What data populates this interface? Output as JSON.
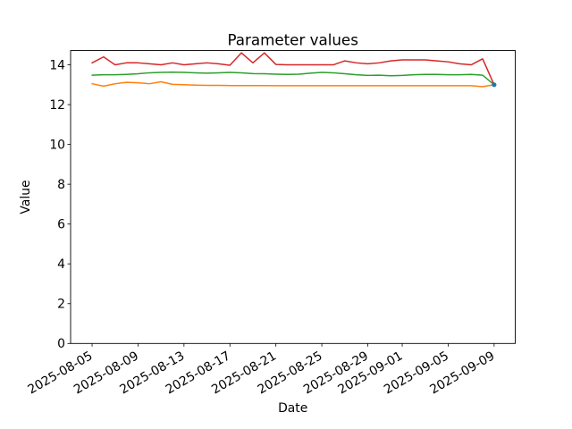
{
  "chart_data": {
    "type": "line",
    "title": "Parameter values",
    "xlabel": "Date",
    "ylabel": "Value",
    "grid": false,
    "legend": null,
    "ylim": [
      0,
      14.72
    ],
    "xlim_day_index": [
      -1.87,
      36.84
    ],
    "yticks": [
      0,
      2,
      4,
      6,
      8,
      10,
      12,
      14
    ],
    "xticks": [
      {
        "day_index": 0,
        "label": "2025-08-05"
      },
      {
        "day_index": 4,
        "label": "2025-08-09"
      },
      {
        "day_index": 8,
        "label": "2025-08-13"
      },
      {
        "day_index": 12,
        "label": "2025-08-17"
      },
      {
        "day_index": 16,
        "label": "2025-08-21"
      },
      {
        "day_index": 20,
        "label": "2025-08-25"
      },
      {
        "day_index": 24,
        "label": "2025-08-29"
      },
      {
        "day_index": 27,
        "label": "2025-09-01"
      },
      {
        "day_index": 31,
        "label": "2025-09-05"
      },
      {
        "day_index": 35,
        "label": "2025-09-09"
      }
    ],
    "x_tick_rotation_deg": 30,
    "x_dates": [
      "2025-08-05",
      "2025-08-06",
      "2025-08-07",
      "2025-08-08",
      "2025-08-09",
      "2025-08-10",
      "2025-08-11",
      "2025-08-12",
      "2025-08-13",
      "2025-08-14",
      "2025-08-15",
      "2025-08-16",
      "2025-08-17",
      "2025-08-18",
      "2025-08-19",
      "2025-08-20",
      "2025-08-21",
      "2025-08-22",
      "2025-08-23",
      "2025-08-24",
      "2025-08-25",
      "2025-08-26",
      "2025-08-27",
      "2025-08-28",
      "2025-08-29",
      "2025-08-30",
      "2025-08-31",
      "2025-09-01",
      "2025-09-02",
      "2025-09-03",
      "2025-09-04",
      "2025-09-05",
      "2025-09-06",
      "2025-09-07",
      "2025-09-08",
      "2025-09-09"
    ],
    "series": [
      {
        "id": "orange",
        "color": "#ff7f0e",
        "type": "line",
        "values": [
          13.05,
          12.93,
          13.05,
          13.12,
          13.1,
          13.05,
          13.15,
          13.02,
          13.0,
          12.98,
          12.97,
          12.97,
          12.96,
          12.96,
          12.96,
          12.96,
          12.95,
          12.95,
          12.95,
          12.95,
          12.95,
          12.95,
          12.95,
          12.95,
          12.95,
          12.95,
          12.95,
          12.95,
          12.95,
          12.95,
          12.95,
          12.95,
          12.95,
          12.95,
          12.9,
          13.0
        ]
      },
      {
        "id": "green",
        "color": "#2ca02c",
        "type": "line",
        "values": [
          13.48,
          13.5,
          13.5,
          13.52,
          13.55,
          13.6,
          13.62,
          13.63,
          13.62,
          13.6,
          13.58,
          13.6,
          13.62,
          13.6,
          13.56,
          13.55,
          13.53,
          13.52,
          13.53,
          13.58,
          13.62,
          13.6,
          13.55,
          13.5,
          13.47,
          13.48,
          13.45,
          13.47,
          13.5,
          13.52,
          13.52,
          13.5,
          13.5,
          13.52,
          13.48,
          13.0
        ]
      },
      {
        "id": "red",
        "color": "#d62728",
        "type": "line",
        "values": [
          14.1,
          14.4,
          14.0,
          14.1,
          14.1,
          14.05,
          14.0,
          14.1,
          14.0,
          14.05,
          14.1,
          14.05,
          13.98,
          14.6,
          14.1,
          14.6,
          14.02,
          14.0,
          14.0,
          14.0,
          14.0,
          14.0,
          14.2,
          14.1,
          14.05,
          14.1,
          14.2,
          14.25,
          14.25,
          14.25,
          14.2,
          14.15,
          14.05,
          14.0,
          14.3,
          13.0
        ]
      },
      {
        "id": "blue-endpoint",
        "color": "#1f77b4",
        "type": "point",
        "points": [
          {
            "day_index": 35,
            "date": "2025-09-09",
            "value": 13.0
          }
        ]
      }
    ]
  }
}
